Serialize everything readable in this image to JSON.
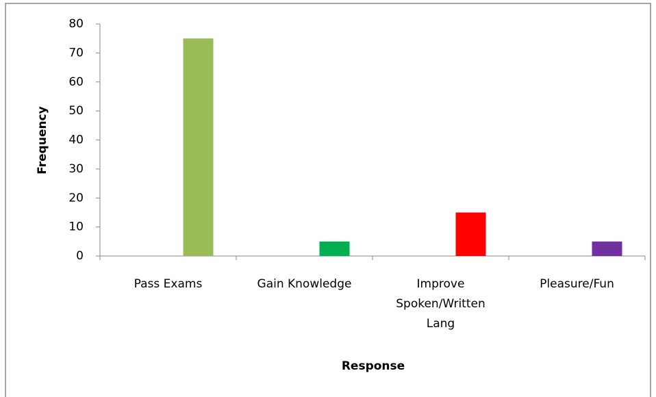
{
  "chart_data": {
    "type": "bar",
    "x_label": "Response",
    "y_label": "Frequency",
    "categories": [
      "Pass Exams",
      "Gain Knowledge",
      "Improve Spoken/Written Lang",
      "Pleasure/Fun"
    ],
    "values": [
      75,
      5,
      15,
      5
    ],
    "colors": [
      "#9bbb59",
      "#00b050",
      "#ff0000",
      "#7030a0"
    ],
    "ylim": [
      0,
      80
    ],
    "yticks": [
      0,
      10,
      20,
      30,
      40,
      50,
      60,
      70,
      80
    ],
    "grid": false
  }
}
